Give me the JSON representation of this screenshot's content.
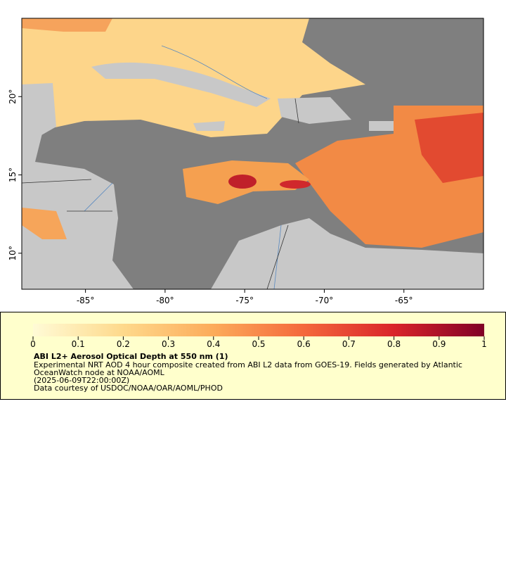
{
  "map": {
    "xlim": [
      -89,
      -60
    ],
    "ylim": [
      7.7,
      25
    ],
    "xticks": [
      {
        "value": -85,
        "label": "-85°"
      },
      {
        "value": -80,
        "label": "-80°"
      },
      {
        "value": -75,
        "label": "-75°"
      },
      {
        "value": -70,
        "label": "-70°"
      },
      {
        "value": -65,
        "label": "-65°"
      }
    ],
    "yticks": [
      {
        "value": 10,
        "label": "10°"
      },
      {
        "value": 15,
        "label": "15°"
      },
      {
        "value": 20,
        "label": "20°"
      }
    ]
  },
  "legend": {
    "colorbar": {
      "lim": [
        0,
        1
      ],
      "ticks": [
        0,
        0.1,
        0.2,
        0.3,
        0.4,
        0.5,
        0.6,
        0.7,
        0.8,
        0.9,
        1
      ],
      "colors": [
        "#fffbd6",
        "#fed98b",
        "#fcab5a",
        "#f4683c",
        "#d9242a",
        "#800026"
      ]
    },
    "title": "ABI L2+ Aerosol Optical Depth at 550 nm (1)",
    "lines": [
      "Experimental NRT AOD 4 hour composite created from ABI L2 data from GOES-19. Fields generated by Atlantic",
      "OceanWatch node at NOAA/AOML",
      "(2025-06-09T22:00:00Z)",
      "Data courtesy of USDOC/NOAA/OAR/AOML/PHOD"
    ]
  }
}
